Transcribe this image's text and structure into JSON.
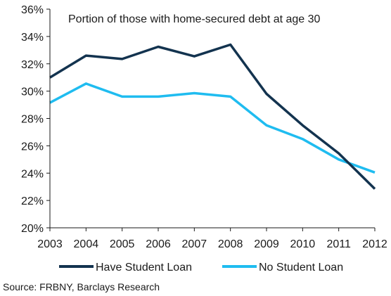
{
  "chart_data": {
    "type": "line",
    "title": "Portion of those with home-secured debt at age 30",
    "xlabel": "",
    "ylabel": "",
    "x": [
      "2003",
      "2004",
      "2005",
      "2006",
      "2007",
      "2008",
      "2009",
      "2010",
      "2011",
      "2012"
    ],
    "y_ticks": [
      "20%",
      "22%",
      "24%",
      "26%",
      "28%",
      "30%",
      "32%",
      "34%",
      "36%"
    ],
    "ylim": [
      20,
      36
    ],
    "y_unit": "%",
    "grid": false,
    "legend_position": "bottom",
    "series": [
      {
        "name": "Have Student Loan",
        "color": "#13334f",
        "values": [
          31.0,
          32.6,
          32.35,
          33.25,
          32.55,
          33.4,
          29.8,
          27.5,
          25.45,
          22.85
        ]
      },
      {
        "name": "No Student Loan",
        "color": "#1fbcf0",
        "values": [
          29.15,
          30.55,
          29.6,
          29.6,
          29.85,
          29.6,
          27.5,
          26.5,
          25.0,
          24.05
        ]
      }
    ]
  },
  "source": "Source: FRBNY, Barclays Research"
}
